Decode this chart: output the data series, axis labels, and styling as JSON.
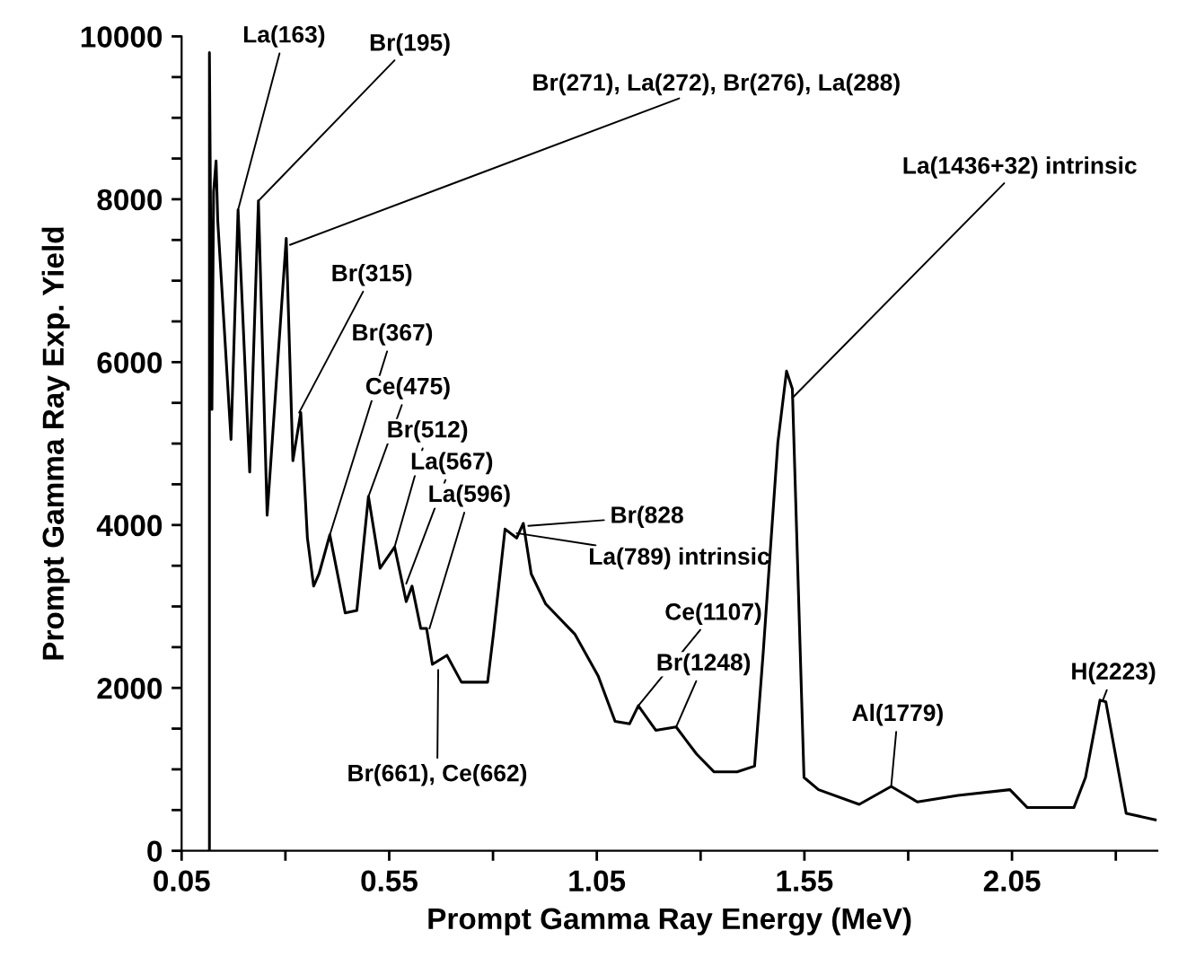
{
  "chart_data": {
    "type": "line",
    "xlabel": "Prompt Gamma Ray Energy (MeV)",
    "ylabel": "Prompt Gamma Ray Exp. Yield",
    "color": "#000000",
    "x": [
      0.117,
      0.117,
      0.123,
      0.127,
      0.133,
      0.137,
      0.169,
      0.186,
      0.214,
      0.235,
      0.256,
      0.302,
      0.318,
      0.337,
      0.353,
      0.368,
      0.381,
      0.407,
      0.444,
      0.472,
      0.5,
      0.528,
      0.563,
      0.591,
      0.605,
      0.626,
      0.64,
      0.654,
      0.689,
      0.724,
      0.787,
      0.801,
      0.829,
      0.857,
      0.873,
      0.892,
      0.927,
      0.997,
      1.053,
      1.094,
      1.129,
      1.15,
      1.192,
      1.241,
      1.29,
      1.332,
      1.388,
      1.43,
      1.451,
      1.486,
      1.507,
      1.521,
      1.549,
      1.584,
      1.682,
      1.759,
      1.822,
      1.92,
      2.045,
      2.087,
      2.199,
      2.227,
      2.262,
      2.276,
      2.325,
      2.395
    ],
    "values": [
      0,
      9800,
      5420,
      8090,
      8470,
      7740,
      5050,
      7870,
      4650,
      7980,
      4120,
      7520,
      4790,
      5380,
      3840,
      3250,
      3400,
      3880,
      2920,
      2950,
      4350,
      3470,
      3730,
      3060,
      3250,
      2730,
      2730,
      2290,
      2400,
      2070,
      2070,
      2660,
      3950,
      3840,
      4020,
      3400,
      3030,
      2660,
      2150,
      1590,
      1560,
      1780,
      1480,
      1520,
      1190,
      970,
      970,
      1040,
      2450,
      5010,
      5890,
      5670,
      900,
      750,
      570,
      790,
      600,
      680,
      750,
      530,
      530,
      900,
      1850,
      1830,
      460,
      380
    ],
    "xlim": [
      0.05,
      2.4
    ],
    "xticks": [
      0.05,
      {
        "value": 0.3,
        "label": null
      },
      0.55,
      {
        "value": 0.8,
        "label": null
      },
      1.05,
      {
        "value": 1.3,
        "label": null
      },
      1.55,
      {
        "value": 1.8,
        "label": null
      },
      2.05,
      {
        "value": 2.3,
        "label": null
      }
    ],
    "ylim": [
      0,
      10000
    ],
    "yticks": [
      0,
      {
        "value": 500,
        "label": null
      },
      {
        "value": 1000,
        "label": null
      },
      {
        "value": 1500,
        "label": null
      },
      2000,
      {
        "value": 2500,
        "label": null
      },
      {
        "value": 3000,
        "label": null
      },
      {
        "value": 3500,
        "label": null
      },
      4000,
      {
        "value": 4500,
        "label": null
      },
      {
        "value": 5000,
        "label": null
      },
      {
        "value": 5500,
        "label": null
      },
      6000,
      {
        "value": 6500,
        "label": null
      },
      {
        "value": 7000,
        "label": null
      },
      {
        "value": 7500,
        "label": null
      },
      8000,
      {
        "value": 8500,
        "label": null
      },
      {
        "value": 9000,
        "label": null
      },
      {
        "value": 9500,
        "label": null
      },
      10000
    ],
    "grid": false,
    "legend": false,
    "marker": "none",
    "line_style": "solid",
    "annotations": [
      {
        "text": "La(163)",
        "x": 0.186,
        "y": 7870
      },
      {
        "text": "Br(195)",
        "x": 0.235,
        "y": 7980
      },
      {
        "text": "Br(271), La(272), Br(276), La(288)",
        "x": 0.311,
        "y": 7440
      },
      {
        "text": "Br(315)",
        "x": 0.333,
        "y": 5380
      },
      {
        "text": "Br(367)",
        "x": 0.407,
        "y": 3880
      },
      {
        "text": "Ce(475)",
        "x": 0.5,
        "y": 4350
      },
      {
        "text": "Br(512)",
        "x": 0.563,
        "y": 3730
      },
      {
        "text": "La(567)",
        "x": 0.591,
        "y": 3280
      },
      {
        "text": "La(596)",
        "x": 0.647,
        "y": 2730
      },
      {
        "text": "Br(828",
        "x": 0.885,
        "y": 3990
      },
      {
        "text": "La(789) intrinsic",
        "x": 0.857,
        "y": 3900
      },
      {
        "text": "Ce(1107)",
        "x": 1.15,
        "y": 1780
      },
      {
        "text": "Br(1248)",
        "x": 1.241,
        "y": 1520
      },
      {
        "text": "Br(661), Ce(662)",
        "x": 0.668,
        "y": 2220
      },
      {
        "text": "La(1436+32) intrinsic",
        "x": 1.521,
        "y": 5560
      },
      {
        "text": "Al(1779)",
        "x": 1.759,
        "y": 790
      },
      {
        "text": "H(2223)",
        "x": 2.269,
        "y": 1850
      }
    ]
  }
}
